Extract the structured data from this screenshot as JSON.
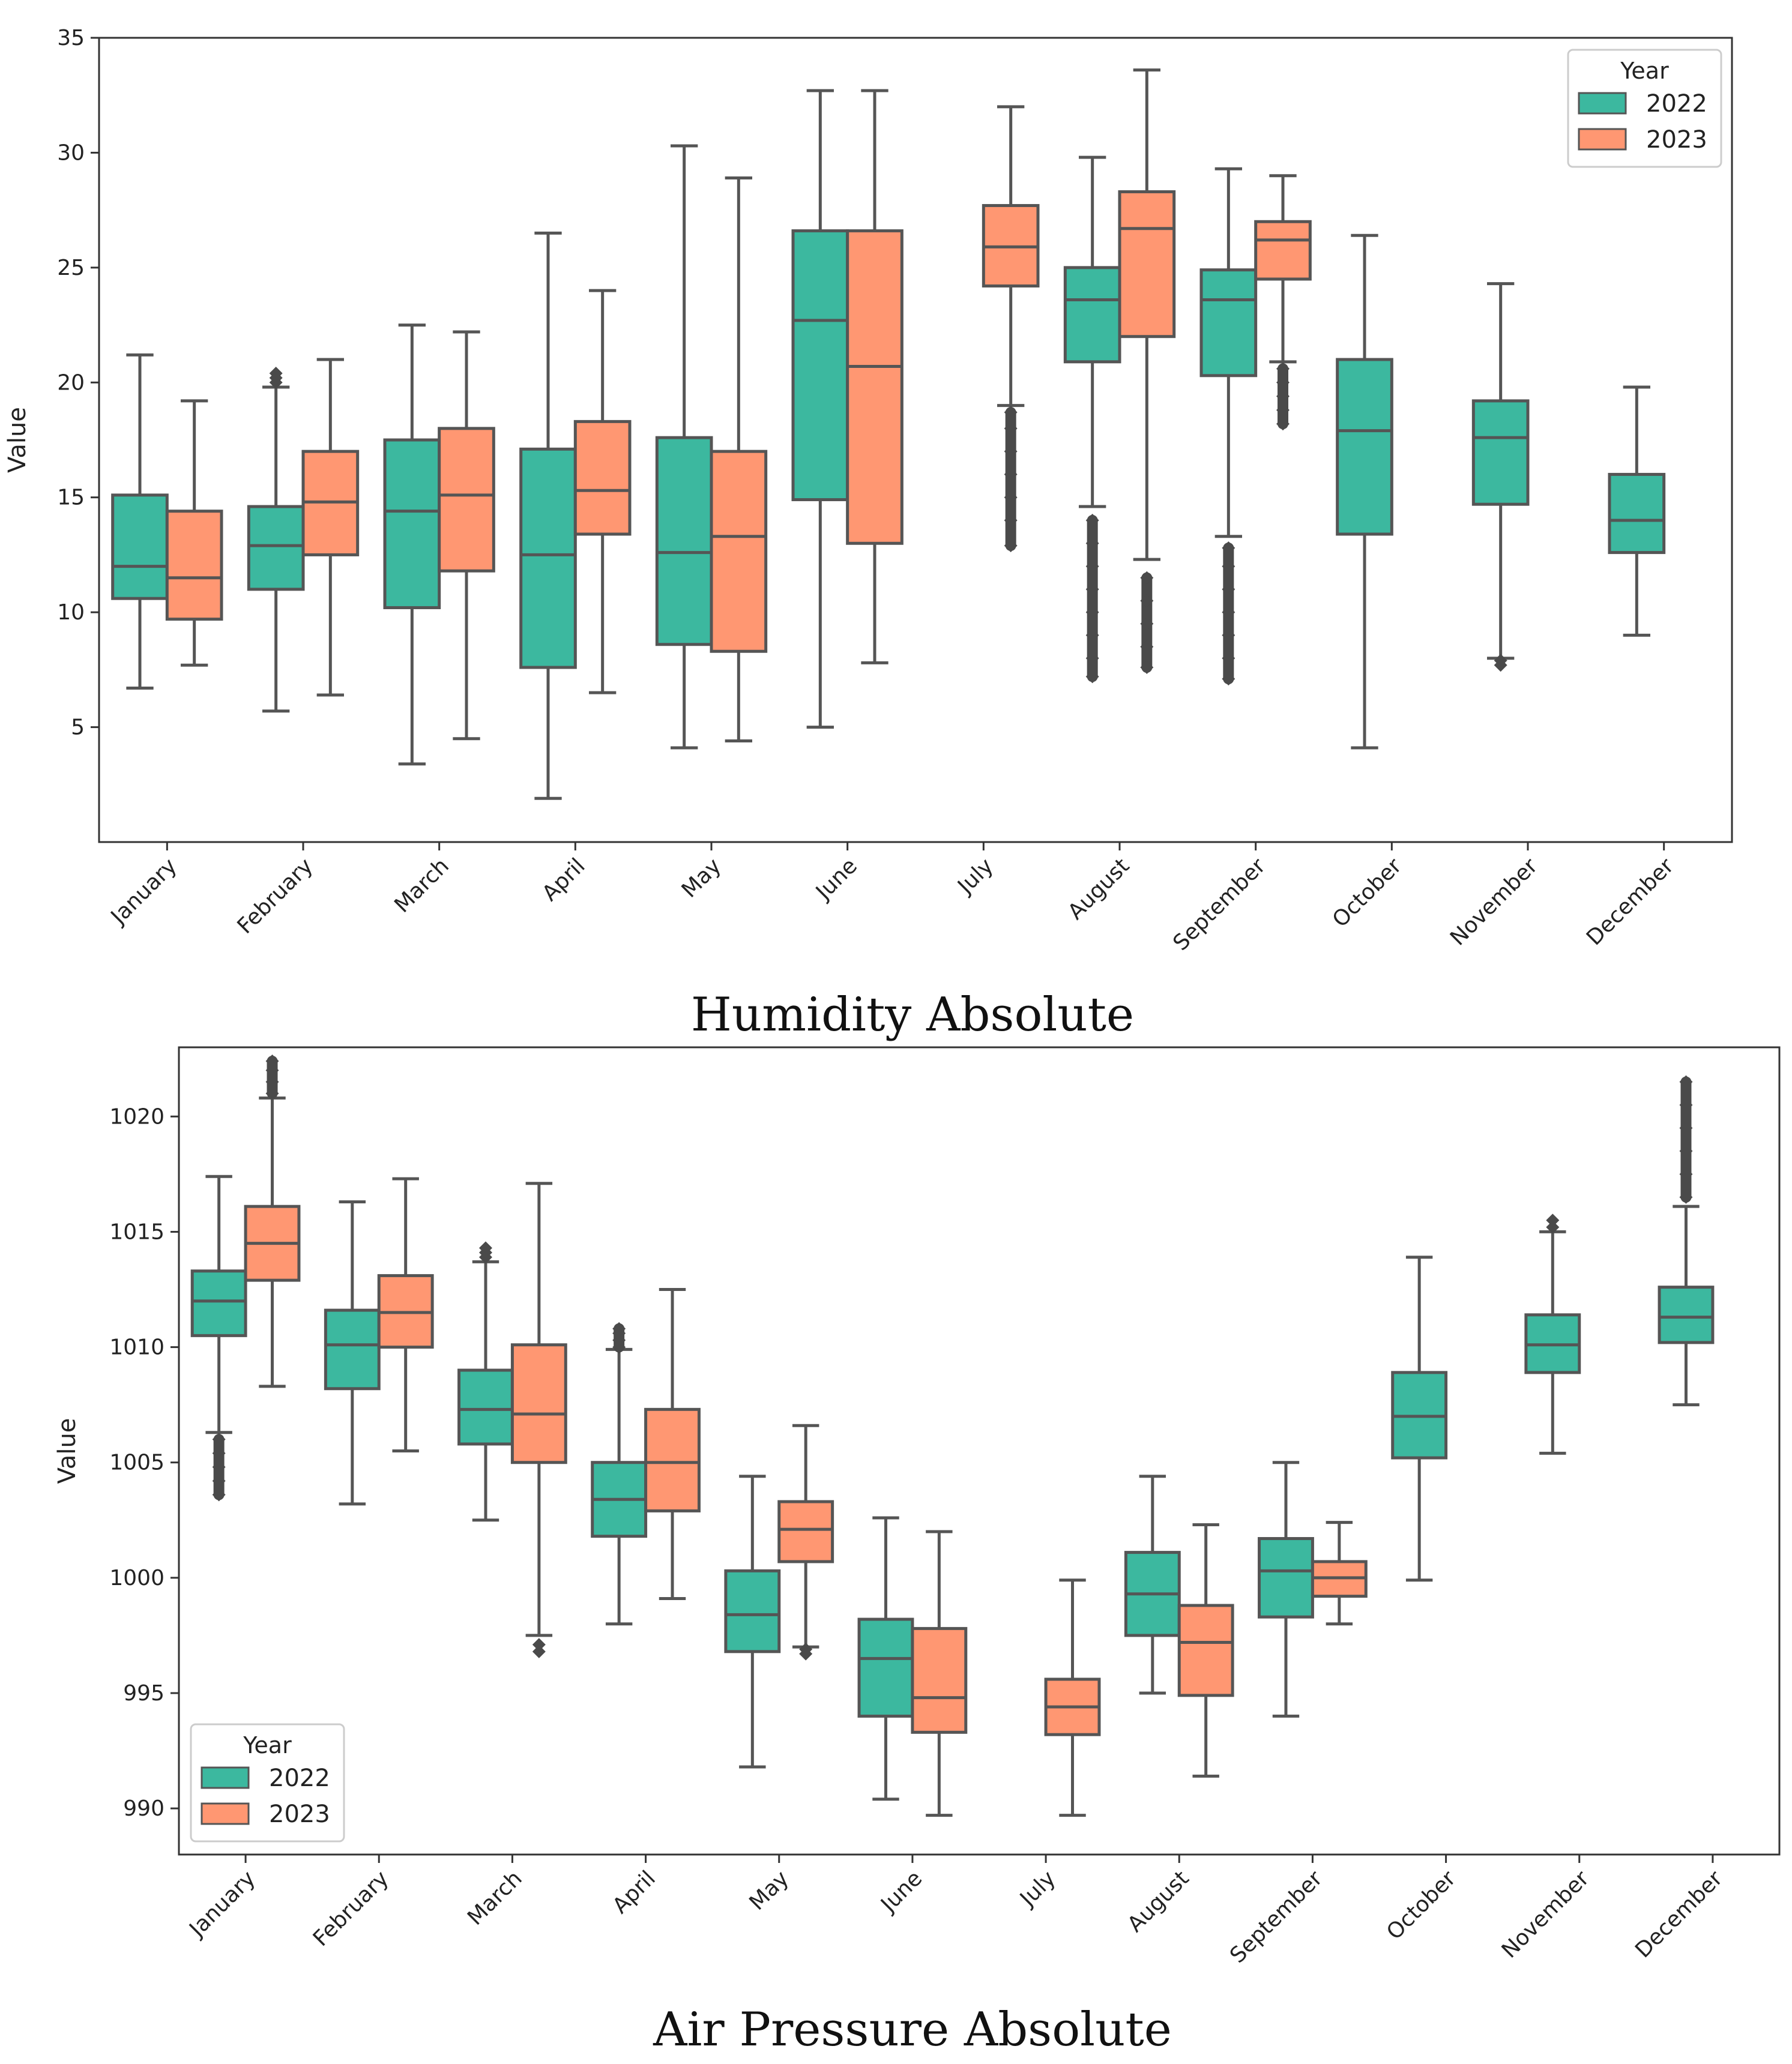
{
  "chart_data": [
    {
      "type": "box",
      "title": "Humidity Absolute",
      "xlabel": "",
      "ylabel": "Value",
      "ylim": [
        0,
        35
      ],
      "yticks": [
        5,
        10,
        15,
        20,
        25,
        30,
        35
      ],
      "legend": {
        "title": "Year",
        "position": "top-right"
      },
      "categories": [
        "January",
        "February",
        "March",
        "April",
        "May",
        "June",
        "July",
        "August",
        "September",
        "October",
        "November",
        "December"
      ],
      "series": [
        {
          "name": "2022",
          "color": "#3cb89f",
          "boxes": [
            {
              "month": "January",
              "whislo": 6.7,
              "q1": 10.6,
              "med": 12.0,
              "q3": 15.1,
              "whishi": 21.2,
              "outliers": []
            },
            {
              "month": "February",
              "whislo": 5.7,
              "q1": 11.0,
              "med": 12.9,
              "q3": 14.6,
              "whishi": 19.8,
              "outliers": [
                20.0,
                20.2,
                20.4
              ]
            },
            {
              "month": "March",
              "whislo": 3.4,
              "q1": 10.2,
              "med": 14.4,
              "q3": 17.5,
              "whishi": 22.5,
              "outliers": []
            },
            {
              "month": "April",
              "whislo": 1.9,
              "q1": 7.6,
              "med": 12.5,
              "q3": 17.1,
              "whishi": 26.5,
              "outliers": []
            },
            {
              "month": "May",
              "whislo": 4.1,
              "q1": 8.6,
              "med": 12.6,
              "q3": 17.6,
              "whishi": 30.3,
              "outliers": []
            },
            {
              "month": "June",
              "whislo": 5.0,
              "q1": 14.9,
              "med": 22.7,
              "q3": 26.6,
              "whishi": 32.7,
              "outliers": []
            },
            null,
            {
              "month": "August",
              "whislo": 14.6,
              "q1": 20.9,
              "med": 23.6,
              "q3": 25.0,
              "whishi": 29.8,
              "outliers": [
                7.2,
                8.0,
                9.0,
                10.0,
                11.0,
                12.0,
                13.0,
                14.0
              ]
            },
            {
              "month": "September",
              "whislo": 13.3,
              "q1": 20.3,
              "med": 23.6,
              "q3": 24.9,
              "whishi": 29.3,
              "outliers": [
                7.1,
                8.0,
                9.0,
                10.0,
                11.0,
                12.0,
                12.8
              ]
            },
            {
              "month": "October",
              "whislo": 4.1,
              "q1": 13.4,
              "med": 17.9,
              "q3": 21.0,
              "whishi": 26.4,
              "outliers": []
            },
            {
              "month": "November",
              "whislo": 8.0,
              "q1": 14.7,
              "med": 17.6,
              "q3": 19.2,
              "whishi": 24.3,
              "outliers": [
                7.7,
                7.9
              ]
            },
            {
              "month": "December",
              "whislo": 9.0,
              "q1": 12.6,
              "med": 14.0,
              "q3": 16.0,
              "whishi": 19.8,
              "outliers": []
            }
          ]
        },
        {
          "name": "2023",
          "color": "#ff9772",
          "boxes": [
            {
              "month": "January",
              "whislo": 7.7,
              "q1": 9.7,
              "med": 11.5,
              "q3": 14.4,
              "whishi": 19.2,
              "outliers": []
            },
            {
              "month": "February",
              "whislo": 6.4,
              "q1": 12.5,
              "med": 14.8,
              "q3": 17.0,
              "whishi": 21.0,
              "outliers": []
            },
            {
              "month": "March",
              "whislo": 4.5,
              "q1": 11.8,
              "med": 15.1,
              "q3": 18.0,
              "whishi": 22.2,
              "outliers": []
            },
            {
              "month": "April",
              "whislo": 6.5,
              "q1": 13.4,
              "med": 15.3,
              "q3": 18.3,
              "whishi": 24.0,
              "outliers": []
            },
            {
              "month": "May",
              "whislo": 4.4,
              "q1": 8.3,
              "med": 13.3,
              "q3": 17.0,
              "whishi": 28.9,
              "outliers": []
            },
            {
              "month": "June",
              "whislo": 7.8,
              "q1": 13.0,
              "med": 20.7,
              "q3": 26.6,
              "whishi": 32.7,
              "outliers": []
            },
            {
              "month": "July",
              "whislo": 19.0,
              "q1": 24.2,
              "med": 25.9,
              "q3": 27.7,
              "whishi": 32.0,
              "outliers": [
                12.9,
                14.0,
                15.0,
                16.0,
                17.0,
                18.0,
                18.7
              ]
            },
            {
              "month": "August",
              "whislo": 12.3,
              "q1": 22.0,
              "med": 26.7,
              "q3": 28.3,
              "whishi": 33.6,
              "outliers": [
                7.6,
                8.5,
                9.5,
                10.5,
                11.5
              ]
            },
            {
              "month": "September",
              "whislo": 20.9,
              "q1": 24.5,
              "med": 26.2,
              "q3": 27.0,
              "whishi": 29.0,
              "outliers": [
                18.2,
                18.8,
                19.4,
                20.0,
                20.6
              ]
            },
            null,
            null,
            null
          ]
        }
      ]
    },
    {
      "type": "box",
      "title": "Air Pressure Absolute",
      "xlabel": "",
      "ylabel": "Value",
      "ylim": [
        988,
        1023
      ],
      "yticks": [
        990,
        995,
        1000,
        1005,
        1010,
        1015,
        1020
      ],
      "legend": {
        "title": "Year",
        "position": "bottom-left"
      },
      "categories": [
        "January",
        "February",
        "March",
        "April",
        "May",
        "June",
        "July",
        "August",
        "September",
        "October",
        "November",
        "December"
      ],
      "series": [
        {
          "name": "2022",
          "color": "#3cb89f",
          "boxes": [
            {
              "month": "January",
              "whislo": 1006.3,
              "q1": 1010.5,
              "med": 1012.0,
              "q3": 1013.3,
              "whishi": 1017.4,
              "outliers": [
                1003.6,
                1004.2,
                1004.8,
                1005.4,
                1006.0
              ]
            },
            {
              "month": "February",
              "whislo": 1003.2,
              "q1": 1008.2,
              "med": 1010.1,
              "q3": 1011.6,
              "whishi": 1016.3,
              "outliers": []
            },
            {
              "month": "March",
              "whislo": 1002.5,
              "q1": 1005.8,
              "med": 1007.3,
              "q3": 1009.0,
              "whishi": 1013.7,
              "outliers": [
                1013.9,
                1014.1,
                1014.3
              ]
            },
            {
              "month": "April",
              "whislo": 998.0,
              "q1": 1001.8,
              "med": 1003.4,
              "q3": 1005.0,
              "whishi": 1009.9,
              "outliers": [
                1010.0,
                1010.3,
                1010.6,
                1010.8
              ]
            },
            {
              "month": "May",
              "whislo": 991.8,
              "q1": 996.8,
              "med": 998.4,
              "q3": 1000.3,
              "whishi": 1004.4,
              "outliers": []
            },
            {
              "month": "June",
              "whislo": 990.4,
              "q1": 994.0,
              "med": 996.5,
              "q3": 998.2,
              "whishi": 1002.6,
              "outliers": []
            },
            null,
            {
              "month": "August",
              "whislo": 995.0,
              "q1": 997.5,
              "med": 999.3,
              "q3": 1001.1,
              "whishi": 1004.4,
              "outliers": []
            },
            {
              "month": "September",
              "whislo": 994.0,
              "q1": 998.3,
              "med": 1000.3,
              "q3": 1001.7,
              "whishi": 1005.0,
              "outliers": []
            },
            {
              "month": "October",
              "whislo": 999.9,
              "q1": 1005.2,
              "med": 1007.0,
              "q3": 1008.9,
              "whishi": 1013.9,
              "outliers": []
            },
            {
              "month": "November",
              "whislo": 1005.4,
              "q1": 1008.9,
              "med": 1010.1,
              "q3": 1011.4,
              "whishi": 1015.0,
              "outliers": [
                1015.2,
                1015.5
              ]
            },
            {
              "month": "December",
              "whislo": 1007.5,
              "q1": 1010.2,
              "med": 1011.3,
              "q3": 1012.6,
              "whishi": 1016.1,
              "outliers": [
                1016.5,
                1017.5,
                1018.5,
                1019.5,
                1020.5,
                1021.5
              ]
            }
          ]
        },
        {
          "name": "2023",
          "color": "#ff9772",
          "boxes": [
            {
              "month": "January",
              "whislo": 1008.3,
              "q1": 1012.9,
              "med": 1014.5,
              "q3": 1016.1,
              "whishi": 1020.8,
              "outliers": [
                1021.0,
                1021.5,
                1022.0,
                1022.4
              ]
            },
            {
              "month": "February",
              "whislo": 1005.5,
              "q1": 1010.0,
              "med": 1011.5,
              "q3": 1013.1,
              "whishi": 1017.3,
              "outliers": []
            },
            {
              "month": "March",
              "whislo": 997.5,
              "q1": 1005.0,
              "med": 1007.1,
              "q3": 1010.1,
              "whishi": 1017.1,
              "outliers": [
                996.8,
                997.1
              ]
            },
            {
              "month": "April",
              "whislo": 999.1,
              "q1": 1002.9,
              "med": 1005.0,
              "q3": 1007.3,
              "whishi": 1012.5,
              "outliers": []
            },
            {
              "month": "May",
              "whislo": 997.0,
              "q1": 1000.7,
              "med": 1002.1,
              "q3": 1003.3,
              "whishi": 1006.6,
              "outliers": [
                996.7,
                996.9
              ]
            },
            {
              "month": "June",
              "whislo": 989.7,
              "q1": 993.3,
              "med": 994.8,
              "q3": 997.8,
              "whishi": 1002.0,
              "outliers": []
            },
            {
              "month": "July",
              "whislo": 989.7,
              "q1": 993.2,
              "med": 994.4,
              "q3": 995.6,
              "whishi": 999.9,
              "outliers": []
            },
            {
              "month": "August",
              "whislo": 991.4,
              "q1": 994.9,
              "med": 997.2,
              "q3": 998.8,
              "whishi": 1002.3,
              "outliers": []
            },
            {
              "month": "September",
              "whislo": 998.0,
              "q1": 999.2,
              "med": 1000.0,
              "q3": 1000.7,
              "whishi": 1002.4,
              "outliers": []
            },
            null,
            null,
            null
          ]
        }
      ]
    }
  ]
}
